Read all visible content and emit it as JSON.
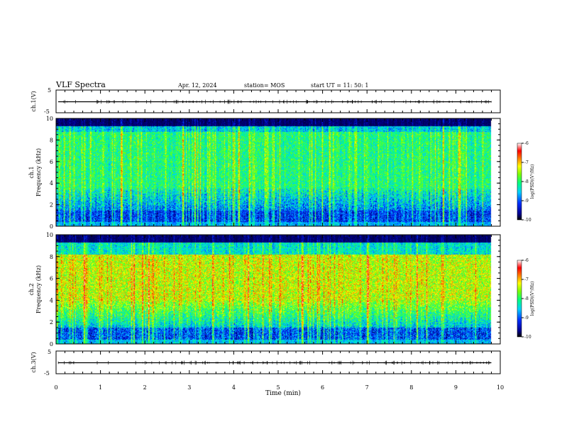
{
  "header": {
    "title": "VLF Spectra",
    "date": "Apr. 12, 2024",
    "station": "station= MOS",
    "start": "start  UT =  11: 50: 1"
  },
  "chart_data": [
    {
      "type": "line",
      "panel": "ch1-waveform",
      "ylabel": "ch.1(V)",
      "ylim": [
        -5,
        5
      ],
      "yticks": [
        "5",
        "-5"
      ],
      "xlim": [
        0,
        10
      ],
      "description_values": {
        "baseline_v": 0
      }
    },
    {
      "type": "heatmap",
      "panel": "ch1-spectrogram",
      "ylabel": "ch.1\nFrequency (kHz)",
      "ylabel_lines": [
        "ch.1",
        "Frequency (kHz)"
      ],
      "ylim": [
        0,
        10
      ],
      "yticks": [
        "0",
        "2",
        "4",
        "6",
        "8",
        "10"
      ],
      "xlim": [
        0,
        10
      ],
      "data_end_min": 9.8,
      "colorbar": {
        "label": "log(PSD)(V²/Hz)",
        "range": [
          -10,
          -6
        ],
        "ticks": [
          "-6",
          "-7",
          "-8",
          "-9",
          "-10"
        ]
      }
    },
    {
      "type": "heatmap",
      "panel": "ch2-spectrogram",
      "ylabel": "ch.2\nFrequency (kHz)",
      "ylabel_lines": [
        "ch.2",
        "Frequency (kHz)"
      ],
      "ylim": [
        0,
        10
      ],
      "yticks": [
        "0",
        "2",
        "4",
        "6",
        "8",
        "10"
      ],
      "xlim": [
        0,
        10
      ],
      "data_end_min": 9.8,
      "colorbar": {
        "label": "log(PSD)(V²/Hz)",
        "range": [
          -10,
          -6
        ],
        "ticks": [
          "-6",
          "-7",
          "-8",
          "-9",
          "-10"
        ]
      }
    },
    {
      "type": "line",
      "panel": "ch3-waveform",
      "ylabel": "ch.3(V)",
      "ylim": [
        -5,
        5
      ],
      "yticks": [
        "5",
        "-5"
      ],
      "xlim": [
        0,
        10
      ],
      "xlabel": "Time  (min)",
      "xticks": [
        "0",
        "1",
        "2",
        "3",
        "4",
        "5",
        "6",
        "7",
        "8",
        "9",
        "10"
      ]
    }
  ]
}
